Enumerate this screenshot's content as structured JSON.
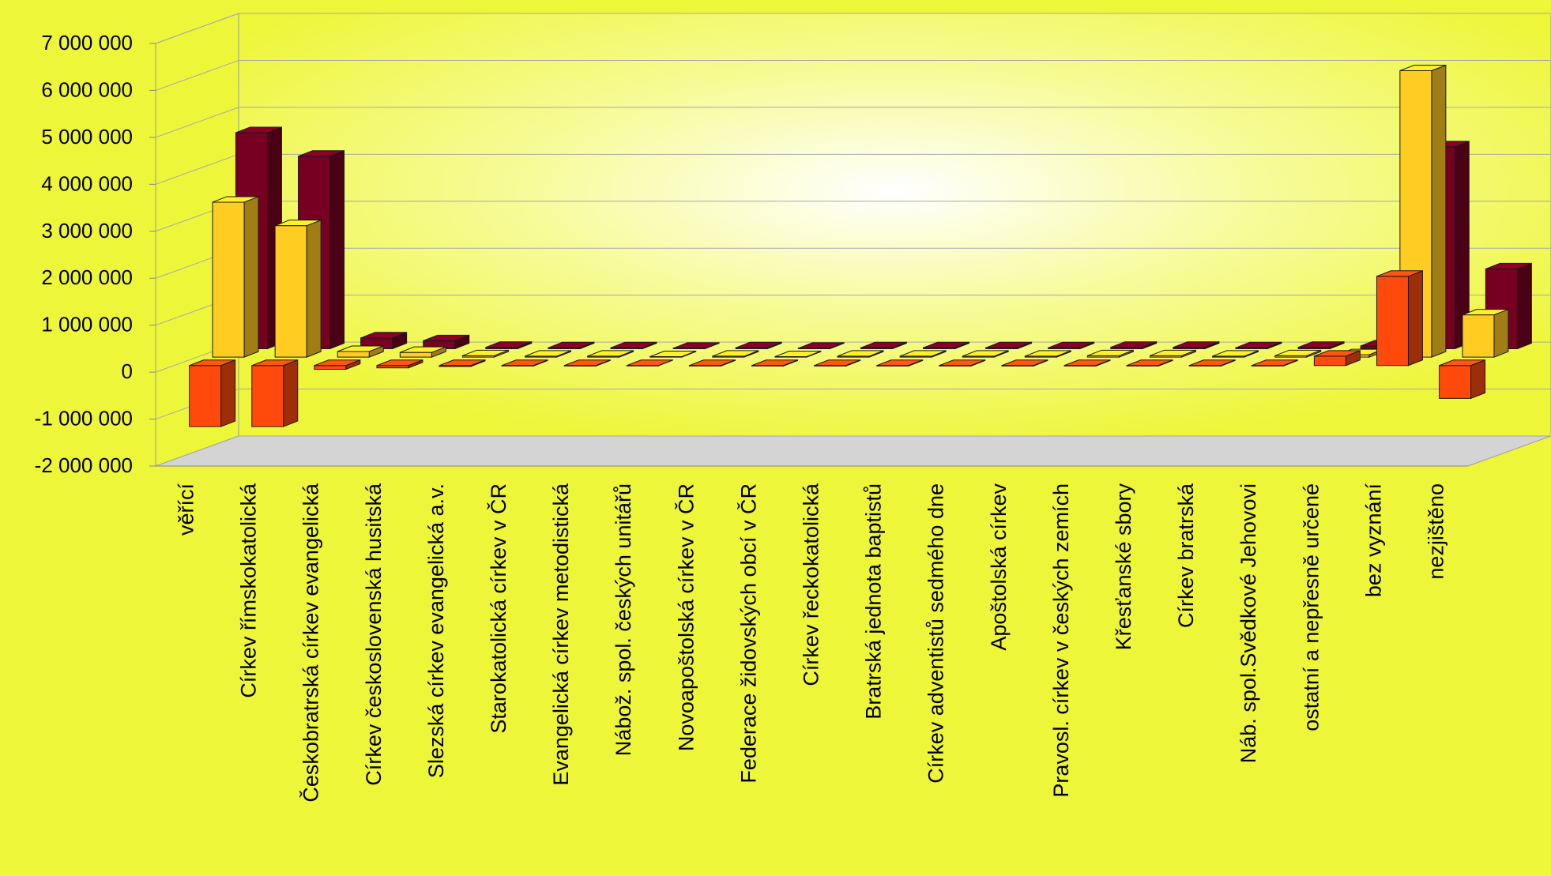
{
  "chart_data": {
    "type": "bar",
    "style": "3d-clustered",
    "grid": true,
    "legend": "none",
    "ylim": [
      -2000000,
      7000000
    ],
    "yticks": [
      {
        "value": 7000000,
        "label": "7 000 000"
      },
      {
        "value": 6000000,
        "label": "6 000 000"
      },
      {
        "value": 5000000,
        "label": "5 000 000"
      },
      {
        "value": 4000000,
        "label": "4 000 000"
      },
      {
        "value": 3000000,
        "label": "3 000 000"
      },
      {
        "value": 2000000,
        "label": "2 000 000"
      },
      {
        "value": 1000000,
        "label": "1 000 000"
      },
      {
        "value": 0,
        "label": "0"
      },
      {
        "value": -1000000,
        "label": "-1 000 000"
      },
      {
        "value": -2000000,
        "label": "-2 000 000"
      }
    ],
    "categories": [
      "věřící",
      "Církev římskokatolická",
      "Českobratrská církev evangelická",
      "Církev československá husitská",
      "Slezská církev evangelická a.v.",
      "Starokatolická církev v ČR",
      "Evangelická církev metodistická",
      "Nábož. spol. českých unitářů",
      "Novoapoštolská církev v ČR",
      "Federace židovských obcí v ČR",
      "Církev řeckokatolická",
      "Bratrská jednota baptistů",
      "Církev adventistů sedmého dne",
      "Apoštolská církev",
      "Pravosl. církev v českých zemích",
      "Křesťanské sbory",
      "Církev bratrská",
      "Náb. spol.Svědkové Jehovovi",
      "ostatní a nepřesně určené",
      "bez vyznání",
      "nezjištěno"
    ],
    "series": [
      {
        "color": "#ff4a0c",
        "values": [
          -1300000,
          -1300000,
          -80000,
          -50000,
          -20000,
          -10000,
          -10000,
          -5000,
          -10000,
          -10000,
          -10000,
          -10000,
          -10000,
          -10000,
          -10000,
          -10000,
          -10000,
          -10000,
          200000,
          1900000,
          -700000
        ]
      },
      {
        "color": "#ffcc22",
        "values": [
          3300000,
          2800000,
          120000,
          100000,
          30000,
          20000,
          20000,
          10000,
          20000,
          10000,
          20000,
          20000,
          20000,
          20000,
          30000,
          30000,
          20000,
          30000,
          50000,
          6100000,
          900000
        ]
      },
      {
        "color": "#770022",
        "values": [
          4600000,
          4100000,
          230000,
          170000,
          30000,
          20000,
          20000,
          10000,
          20000,
          10000,
          20000,
          20000,
          20000,
          20000,
          30000,
          30000,
          20000,
          30000,
          60000,
          4300000,
          1700000
        ]
      }
    ]
  }
}
